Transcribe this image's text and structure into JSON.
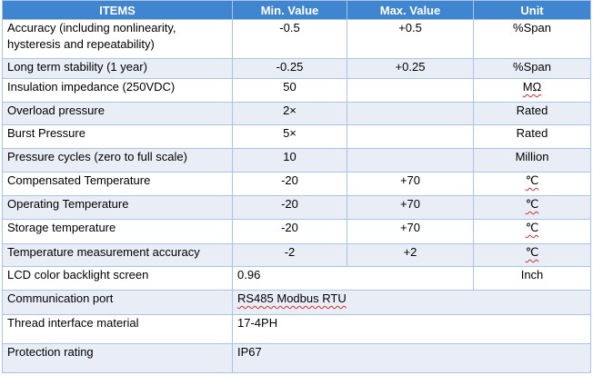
{
  "headers": [
    "ITEMS",
    "Min. Value",
    "Max. Value",
    "Unit"
  ],
  "rows": [
    {
      "item": "Accuracy (including nonlinearity, hysteresis and repeatability)",
      "min": "-0.5",
      "max": "+0.5",
      "unit": "%Span"
    },
    {
      "item": "Long term stability (1 year)",
      "min": "-0.25",
      "max": "+0.25",
      "unit": "%Span"
    },
    {
      "item": "Insulation impedance (250VDC)",
      "min": "50",
      "max": "",
      "unit": "MΩ"
    },
    {
      "item": "Overload pressure",
      "min": "2×",
      "max": "",
      "unit": "Rated"
    },
    {
      "item": "Burst Pressure",
      "min": "5×",
      "max": "",
      "unit": "Rated"
    },
    {
      "item": "Pressure cycles (zero to full scale)",
      "min": "10",
      "max": "",
      "unit": "Million"
    },
    {
      "item": "Compensated Temperature",
      "min": "-20",
      "max": "+70",
      "unit": "℃"
    },
    {
      "item": "Operating Temperature",
      "min": "-20",
      "max": "+70",
      "unit": "℃"
    },
    {
      "item": "Storage temperature",
      "min": "-20",
      "max": "+70",
      "unit": "℃"
    },
    {
      "item": "Temperature measurement accuracy",
      "min": "-2",
      "max": "+2",
      "unit": "℃"
    },
    {
      "item": "LCD color backlight screen",
      "min": "0.96",
      "max": "",
      "unit": "Inch"
    }
  ],
  "merged_rows": [
    {
      "item": "Communication port",
      "value": "RS485 Modbus RTU"
    },
    {
      "item": "Thread interface material",
      "value": "17-4PH"
    },
    {
      "item": "Protection rating",
      "value": "IP67"
    }
  ]
}
